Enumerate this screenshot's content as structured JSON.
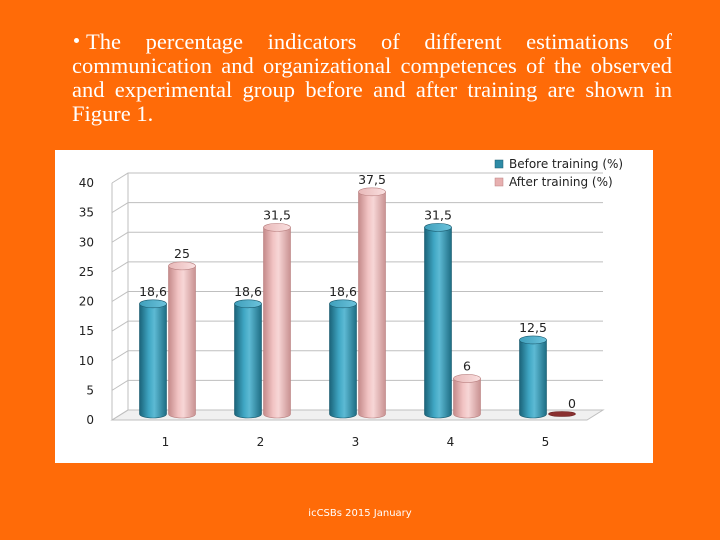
{
  "slide": {
    "bullet_text": "The percentage indicators of different estimations of communication and organizational competences of the observed and experimental group before and after training are shown in Figure 1.",
    "footer": "icCSBs 2015 January"
  },
  "chart_data": {
    "type": "bar",
    "categories": [
      "1",
      "2",
      "3",
      "4",
      "5"
    ],
    "series": [
      {
        "name": "Before training (%)",
        "values": [
          18.6,
          18.6,
          18.6,
          31.5,
          12.5
        ],
        "labels": [
          "18,6",
          "18,6",
          "18,6",
          "31,5",
          "12,5"
        ],
        "color": "#2e8ba6"
      },
      {
        "name": "After training (%)",
        "values": [
          25,
          31.5,
          37.5,
          6,
          0
        ],
        "labels": [
          "25",
          "31,5",
          "37,5",
          "6",
          "0"
        ],
        "color": "#e7b0b0"
      }
    ],
    "yticks": [
      "0",
      "5",
      "10",
      "15",
      "20",
      "25",
      "30",
      "35",
      "40"
    ],
    "ylim": [
      0,
      40
    ],
    "grid": true,
    "legend_position": "top-right",
    "style": "3d-cylinder"
  }
}
